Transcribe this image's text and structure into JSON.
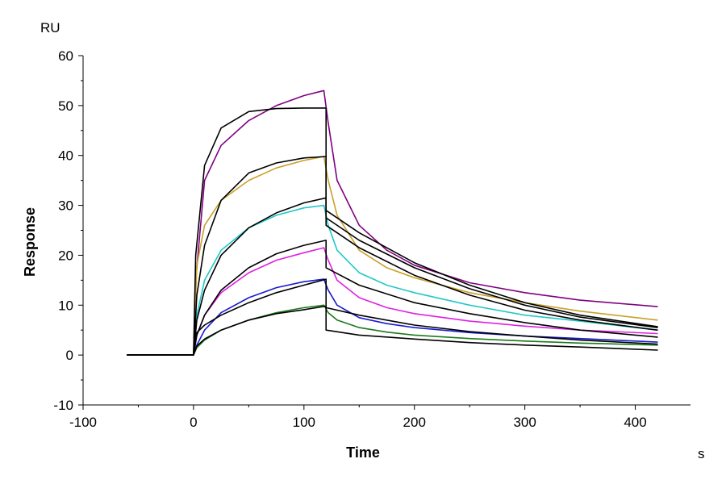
{
  "chart_data": {
    "type": "line",
    "xlabel": "Time",
    "ylabel": "Response",
    "x_unit": "s",
    "y_unit": "RU",
    "xlim": [
      -100,
      450
    ],
    "ylim": [
      -10,
      60
    ],
    "x_ticks": [
      -100,
      0,
      100,
      200,
      300,
      400
    ],
    "y_ticks": [
      -10,
      0,
      10,
      20,
      30,
      40,
      50,
      60
    ],
    "grid": false,
    "legend": "none",
    "association_end": 120,
    "baseline_start": -60,
    "end_time": 420,
    "series": [
      {
        "color": "#800080",
        "values": [
          {
            "x": -60,
            "y": 0
          },
          {
            "x": 0,
            "y": 0
          },
          {
            "x": 2,
            "y": 15
          },
          {
            "x": 10,
            "y": 35
          },
          {
            "x": 25,
            "y": 42
          },
          {
            "x": 50,
            "y": 47
          },
          {
            "x": 75,
            "y": 50
          },
          {
            "x": 100,
            "y": 52
          },
          {
            "x": 118,
            "y": 53
          },
          {
            "x": 122,
            "y": 46.5
          },
          {
            "x": 130,
            "y": 35
          },
          {
            "x": 150,
            "y": 26
          },
          {
            "x": 175,
            "y": 21
          },
          {
            "x": 200,
            "y": 18
          },
          {
            "x": 250,
            "y": 14.5
          },
          {
            "x": 300,
            "y": 12.5
          },
          {
            "x": 350,
            "y": 11
          },
          {
            "x": 420,
            "y": 9.7
          }
        ]
      },
      {
        "color": "#c8a02a",
        "values": [
          {
            "x": -60,
            "y": 0
          },
          {
            "x": 0,
            "y": 0
          },
          {
            "x": 3,
            "y": 18
          },
          {
            "x": 10,
            "y": 26
          },
          {
            "x": 25,
            "y": 31
          },
          {
            "x": 50,
            "y": 35
          },
          {
            "x": 75,
            "y": 37.5
          },
          {
            "x": 100,
            "y": 39
          },
          {
            "x": 118,
            "y": 39.8
          },
          {
            "x": 122,
            "y": 35
          },
          {
            "x": 130,
            "y": 28
          },
          {
            "x": 150,
            "y": 21
          },
          {
            "x": 175,
            "y": 17.5
          },
          {
            "x": 200,
            "y": 15.5
          },
          {
            "x": 250,
            "y": 12.5
          },
          {
            "x": 300,
            "y": 10.5
          },
          {
            "x": 350,
            "y": 8.8
          },
          {
            "x": 420,
            "y": 7
          }
        ]
      },
      {
        "color": "#20c8c8",
        "values": [
          {
            "x": -60,
            "y": 0
          },
          {
            "x": 0,
            "y": 0
          },
          {
            "x": 3,
            "y": 8
          },
          {
            "x": 10,
            "y": 15
          },
          {
            "x": 25,
            "y": 21
          },
          {
            "x": 50,
            "y": 25.5
          },
          {
            "x": 75,
            "y": 28
          },
          {
            "x": 100,
            "y": 29.5
          },
          {
            "x": 118,
            "y": 30
          },
          {
            "x": 122,
            "y": 26
          },
          {
            "x": 130,
            "y": 21
          },
          {
            "x": 150,
            "y": 16.5
          },
          {
            "x": 175,
            "y": 14
          },
          {
            "x": 200,
            "y": 12.5
          },
          {
            "x": 250,
            "y": 10
          },
          {
            "x": 300,
            "y": 8
          },
          {
            "x": 350,
            "y": 6.8
          },
          {
            "x": 420,
            "y": 5
          }
        ]
      },
      {
        "color": "#e020e0",
        "values": [
          {
            "x": -60,
            "y": 0
          },
          {
            "x": 0,
            "y": 0
          },
          {
            "x": 3,
            "y": 4
          },
          {
            "x": 10,
            "y": 8
          },
          {
            "x": 25,
            "y": 12.5
          },
          {
            "x": 50,
            "y": 16.5
          },
          {
            "x": 75,
            "y": 19
          },
          {
            "x": 100,
            "y": 20.5
          },
          {
            "x": 118,
            "y": 21.5
          },
          {
            "x": 122,
            "y": 19
          },
          {
            "x": 130,
            "y": 15
          },
          {
            "x": 150,
            "y": 11.5
          },
          {
            "x": 175,
            "y": 9.5
          },
          {
            "x": 200,
            "y": 8.3
          },
          {
            "x": 250,
            "y": 6.8
          },
          {
            "x": 300,
            "y": 5.8
          },
          {
            "x": 350,
            "y": 5
          },
          {
            "x": 420,
            "y": 4.3
          }
        ]
      },
      {
        "color": "#1a1ad0",
        "values": [
          {
            "x": -60,
            "y": 0
          },
          {
            "x": 0,
            "y": 0
          },
          {
            "x": 3,
            "y": 2
          },
          {
            "x": 10,
            "y": 5
          },
          {
            "x": 25,
            "y": 8.5
          },
          {
            "x": 50,
            "y": 11.5
          },
          {
            "x": 75,
            "y": 13.5
          },
          {
            "x": 100,
            "y": 14.7
          },
          {
            "x": 118,
            "y": 15.2
          },
          {
            "x": 122,
            "y": 13
          },
          {
            "x": 130,
            "y": 10
          },
          {
            "x": 150,
            "y": 7.5
          },
          {
            "x": 175,
            "y": 6.3
          },
          {
            "x": 200,
            "y": 5.5
          },
          {
            "x": 250,
            "y": 4.5
          },
          {
            "x": 300,
            "y": 3.8
          },
          {
            "x": 350,
            "y": 3.3
          },
          {
            "x": 420,
            "y": 2.6
          }
        ]
      },
      {
        "color": "#1a7a1a",
        "values": [
          {
            "x": -60,
            "y": 0
          },
          {
            "x": 0,
            "y": 0
          },
          {
            "x": 3,
            "y": 1.5
          },
          {
            "x": 10,
            "y": 3
          },
          {
            "x": 25,
            "y": 5
          },
          {
            "x": 50,
            "y": 7
          },
          {
            "x": 75,
            "y": 8.5
          },
          {
            "x": 100,
            "y": 9.5
          },
          {
            "x": 118,
            "y": 10
          },
          {
            "x": 122,
            "y": 8.5
          },
          {
            "x": 130,
            "y": 7
          },
          {
            "x": 150,
            "y": 5.5
          },
          {
            "x": 175,
            "y": 4.6
          },
          {
            "x": 200,
            "y": 4
          },
          {
            "x": 250,
            "y": 3.3
          },
          {
            "x": 300,
            "y": 2.8
          },
          {
            "x": 350,
            "y": 2.4
          },
          {
            "x": 420,
            "y": 2
          }
        ]
      }
    ],
    "fits": [
      {
        "color": "#000000",
        "values": [
          {
            "x": -60,
            "y": 0
          },
          {
            "x": 0,
            "y": 0
          },
          {
            "x": 2,
            "y": 20
          },
          {
            "x": 10,
            "y": 38
          },
          {
            "x": 25,
            "y": 45.5
          },
          {
            "x": 50,
            "y": 48.8
          },
          {
            "x": 75,
            "y": 49.4
          },
          {
            "x": 100,
            "y": 49.5
          },
          {
            "x": 120,
            "y": 49.5
          },
          {
            "x": 120,
            "y": 29
          },
          {
            "x": 150,
            "y": 24.5
          },
          {
            "x": 200,
            "y": 18.5
          },
          {
            "x": 250,
            "y": 14
          },
          {
            "x": 300,
            "y": 10.5
          },
          {
            "x": 350,
            "y": 8
          },
          {
            "x": 420,
            "y": 5.7
          }
        ]
      },
      {
        "color": "#000000",
        "values": [
          {
            "x": -60,
            "y": 0
          },
          {
            "x": 0,
            "y": 0
          },
          {
            "x": 3,
            "y": 12
          },
          {
            "x": 10,
            "y": 22
          },
          {
            "x": 25,
            "y": 31
          },
          {
            "x": 50,
            "y": 36.5
          },
          {
            "x": 75,
            "y": 38.5
          },
          {
            "x": 100,
            "y": 39.5
          },
          {
            "x": 120,
            "y": 39.8
          },
          {
            "x": 120,
            "y": 27.5
          },
          {
            "x": 150,
            "y": 23
          },
          {
            "x": 200,
            "y": 17.5
          },
          {
            "x": 250,
            "y": 13.3
          },
          {
            "x": 300,
            "y": 10
          },
          {
            "x": 350,
            "y": 7.6
          },
          {
            "x": 420,
            "y": 5.5
          }
        ]
      },
      {
        "color": "#000000",
        "values": [
          {
            "x": -60,
            "y": 0
          },
          {
            "x": 0,
            "y": 0
          },
          {
            "x": 3,
            "y": 7
          },
          {
            "x": 10,
            "y": 13
          },
          {
            "x": 25,
            "y": 20
          },
          {
            "x": 50,
            "y": 25.5
          },
          {
            "x": 75,
            "y": 28.5
          },
          {
            "x": 100,
            "y": 30.5
          },
          {
            "x": 120,
            "y": 31.5
          },
          {
            "x": 120,
            "y": 26
          },
          {
            "x": 150,
            "y": 21.5
          },
          {
            "x": 200,
            "y": 16
          },
          {
            "x": 250,
            "y": 12
          },
          {
            "x": 300,
            "y": 9
          },
          {
            "x": 350,
            "y": 7
          },
          {
            "x": 420,
            "y": 5
          }
        ]
      },
      {
        "color": "#000000",
        "values": [
          {
            "x": -60,
            "y": 0
          },
          {
            "x": 0,
            "y": 0
          },
          {
            "x": 3,
            "y": 4
          },
          {
            "x": 10,
            "y": 8
          },
          {
            "x": 25,
            "y": 13
          },
          {
            "x": 50,
            "y": 17.5
          },
          {
            "x": 75,
            "y": 20.3
          },
          {
            "x": 100,
            "y": 22
          },
          {
            "x": 120,
            "y": 23
          },
          {
            "x": 120,
            "y": 17.5
          },
          {
            "x": 150,
            "y": 14
          },
          {
            "x": 200,
            "y": 10.5
          },
          {
            "x": 250,
            "y": 8.3
          },
          {
            "x": 300,
            "y": 6.5
          },
          {
            "x": 350,
            "y": 5
          },
          {
            "x": 420,
            "y": 3.6
          }
        ]
      },
      {
        "color": "#000000",
        "values": [
          {
            "x": -60,
            "y": 0
          },
          {
            "x": 0,
            "y": 0
          },
          {
            "x": 3,
            "y": 4.5
          },
          {
            "x": 10,
            "y": 6
          },
          {
            "x": 25,
            "y": 8
          },
          {
            "x": 50,
            "y": 10.5
          },
          {
            "x": 75,
            "y": 12.5
          },
          {
            "x": 100,
            "y": 14
          },
          {
            "x": 120,
            "y": 15.2
          },
          {
            "x": 120,
            "y": 9.5
          },
          {
            "x": 150,
            "y": 8
          },
          {
            "x": 200,
            "y": 6
          },
          {
            "x": 250,
            "y": 4.7
          },
          {
            "x": 300,
            "y": 3.8
          },
          {
            "x": 350,
            "y": 3
          },
          {
            "x": 420,
            "y": 2.2
          }
        ]
      },
      {
        "color": "#000000",
        "values": [
          {
            "x": -60,
            "y": 0
          },
          {
            "x": 0,
            "y": 0
          },
          {
            "x": 3,
            "y": 1.8
          },
          {
            "x": 10,
            "y": 3.2
          },
          {
            "x": 25,
            "y": 5
          },
          {
            "x": 50,
            "y": 7
          },
          {
            "x": 75,
            "y": 8.3
          },
          {
            "x": 100,
            "y": 9.1
          },
          {
            "x": 120,
            "y": 9.8
          },
          {
            "x": 120,
            "y": 5
          },
          {
            "x": 150,
            "y": 4
          },
          {
            "x": 200,
            "y": 3.2
          },
          {
            "x": 250,
            "y": 2.5
          },
          {
            "x": 300,
            "y": 2
          },
          {
            "x": 350,
            "y": 1.6
          },
          {
            "x": 420,
            "y": 1
          }
        ]
      }
    ]
  }
}
